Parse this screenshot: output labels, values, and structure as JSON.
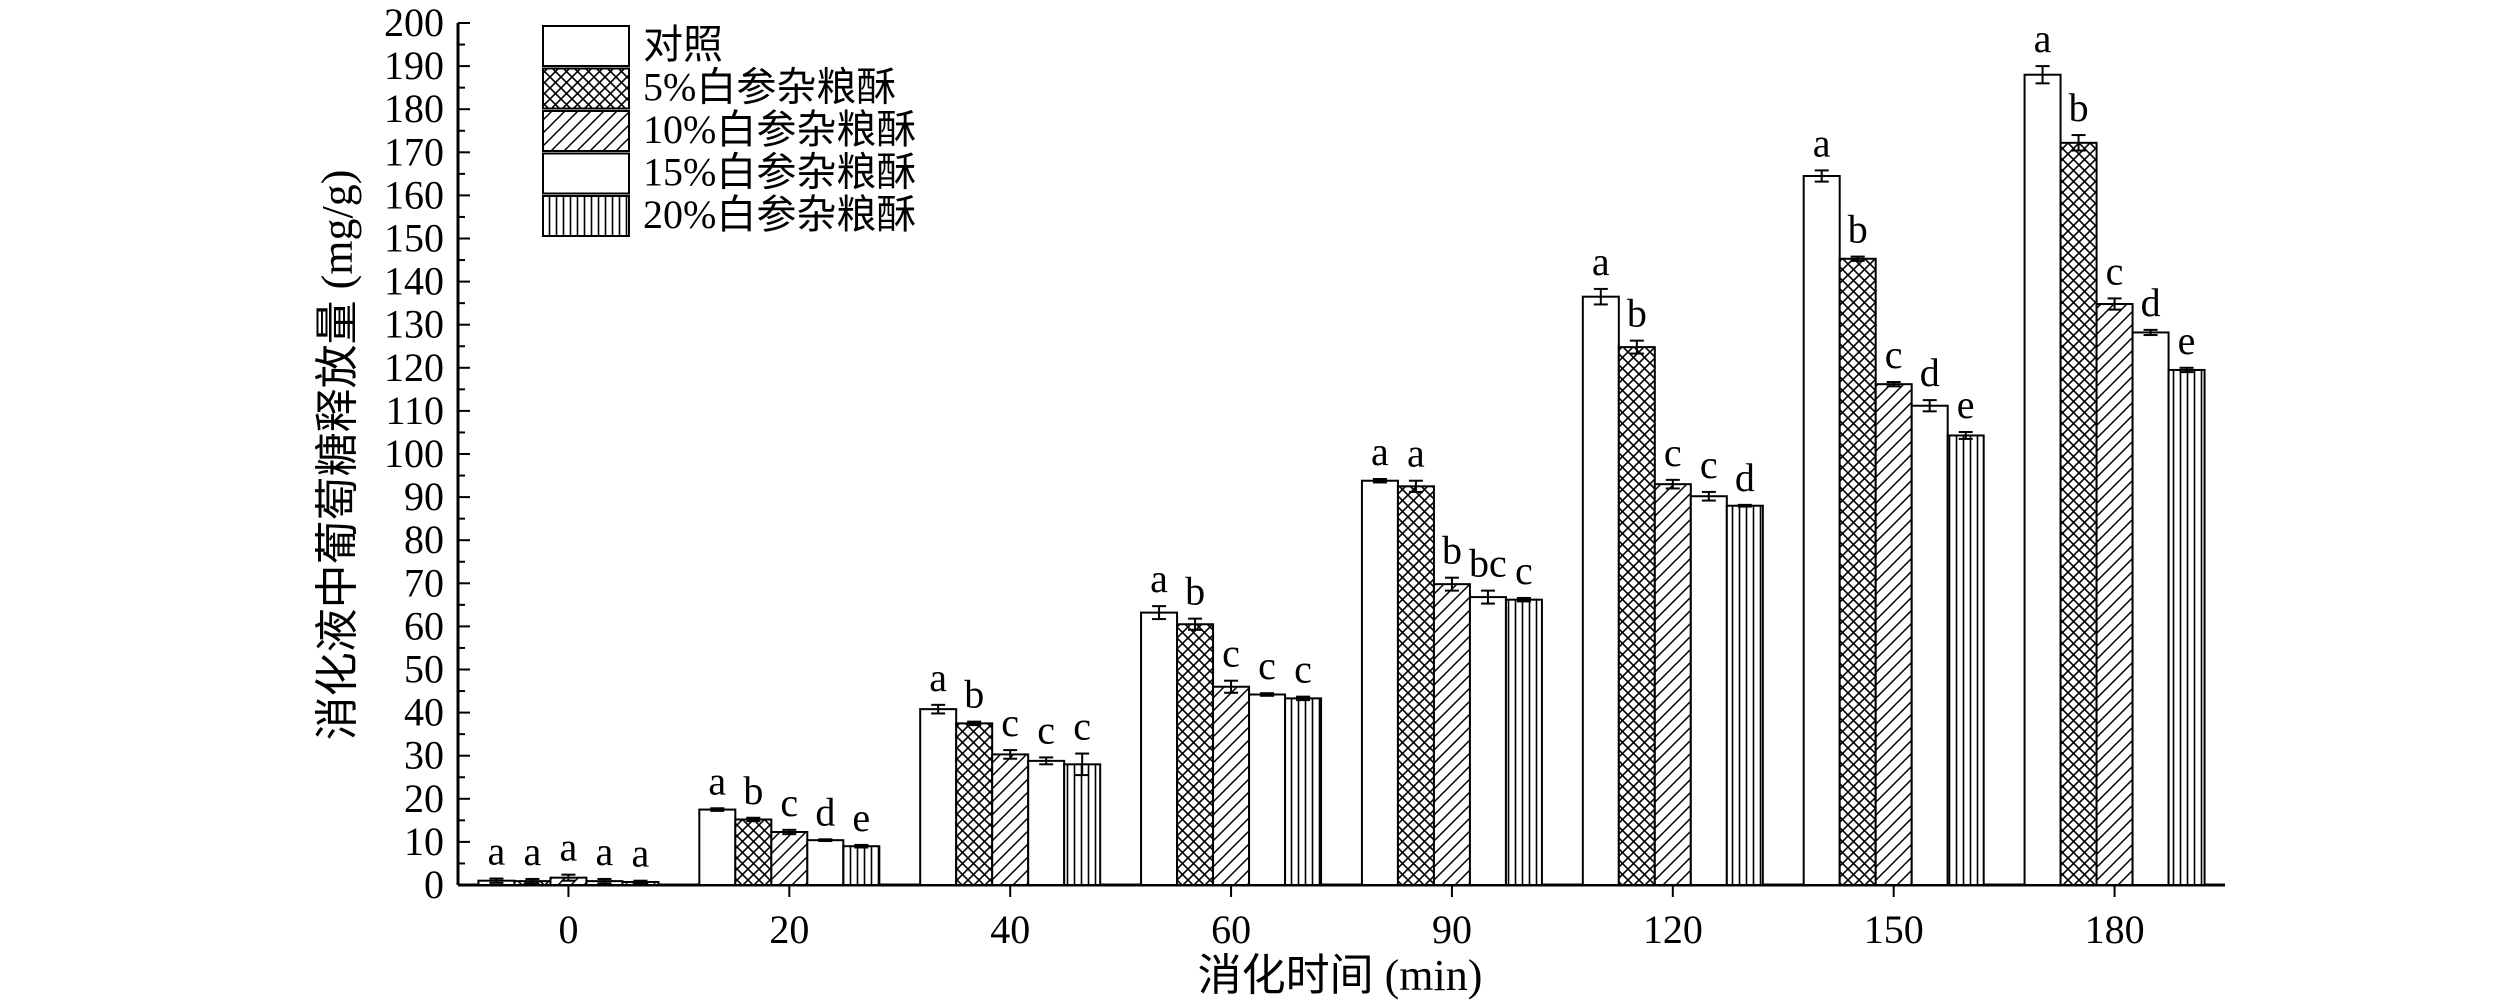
{
  "chart_data": {
    "type": "bar",
    "xlabel": "消化时间 (min)",
    "ylabel": "消化液中葡萄糖释放量 (mg/g)",
    "ylim": [
      0,
      200
    ],
    "yticks": [
      0,
      10,
      20,
      30,
      40,
      50,
      60,
      70,
      80,
      90,
      100,
      110,
      120,
      130,
      140,
      150,
      160,
      170,
      180,
      190,
      200
    ],
    "categories": [
      "0",
      "20",
      "40",
      "60",
      "90",
      "120",
      "150",
      "180"
    ],
    "legend_position": "top-left",
    "grid": false,
    "series": [
      {
        "name": "对照",
        "pattern": "plain",
        "values": [
          1.0,
          17.5,
          40.8,
          63.2,
          93.8,
          136.5,
          164.5,
          188.0
        ],
        "errors": [
          0.5,
          0.3,
          1.0,
          1.5,
          0.4,
          1.8,
          1.3,
          2.0
        ],
        "labels": [
          "a",
          "a",
          "a",
          "a",
          "a",
          "a",
          "a",
          "a"
        ]
      },
      {
        "name": "5%白参杂粮酥",
        "pattern": "crosshatch",
        "values": [
          0.9,
          15.2,
          37.5,
          60.5,
          92.5,
          124.8,
          145.3,
          172.2
        ],
        "errors": [
          0.5,
          0.4,
          0.4,
          1.3,
          1.3,
          1.5,
          0.5,
          1.8
        ],
        "labels": [
          "a",
          "b",
          "b",
          "b",
          "a",
          "b",
          "b",
          "b"
        ]
      },
      {
        "name": "10%白参杂粮酥",
        "pattern": "diagonal",
        "values": [
          1.7,
          12.3,
          30.3,
          46.0,
          69.8,
          93.0,
          116.2,
          134.8
        ],
        "errors": [
          0.7,
          0.5,
          1.0,
          1.4,
          1.5,
          1.0,
          0.5,
          1.3
        ],
        "labels": [
          "a",
          "c",
          "c",
          "c",
          "b",
          "c",
          "c",
          "c"
        ]
      },
      {
        "name": "15%白参杂粮酥",
        "pattern": "plain",
        "values": [
          0.9,
          10.4,
          28.8,
          44.2,
          66.8,
          90.2,
          111.2,
          128.2
        ],
        "errors": [
          0.5,
          0.2,
          0.8,
          0.3,
          1.5,
          1.0,
          1.3,
          0.6
        ],
        "labels": [
          "a",
          "d",
          "c",
          "c",
          "bc",
          "c",
          "d",
          "d"
        ]
      },
      {
        "name": "20%白参杂粮酥",
        "pattern": "vertical",
        "values": [
          0.7,
          9.0,
          28.0,
          43.3,
          66.2,
          88.0,
          104.3,
          119.5
        ],
        "errors": [
          0.3,
          0.3,
          2.5,
          0.4,
          0.4,
          0.2,
          0.8,
          0.5
        ],
        "labels": [
          "a",
          "e",
          "c",
          "c",
          "c",
          "d",
          "e",
          "e"
        ]
      }
    ]
  }
}
